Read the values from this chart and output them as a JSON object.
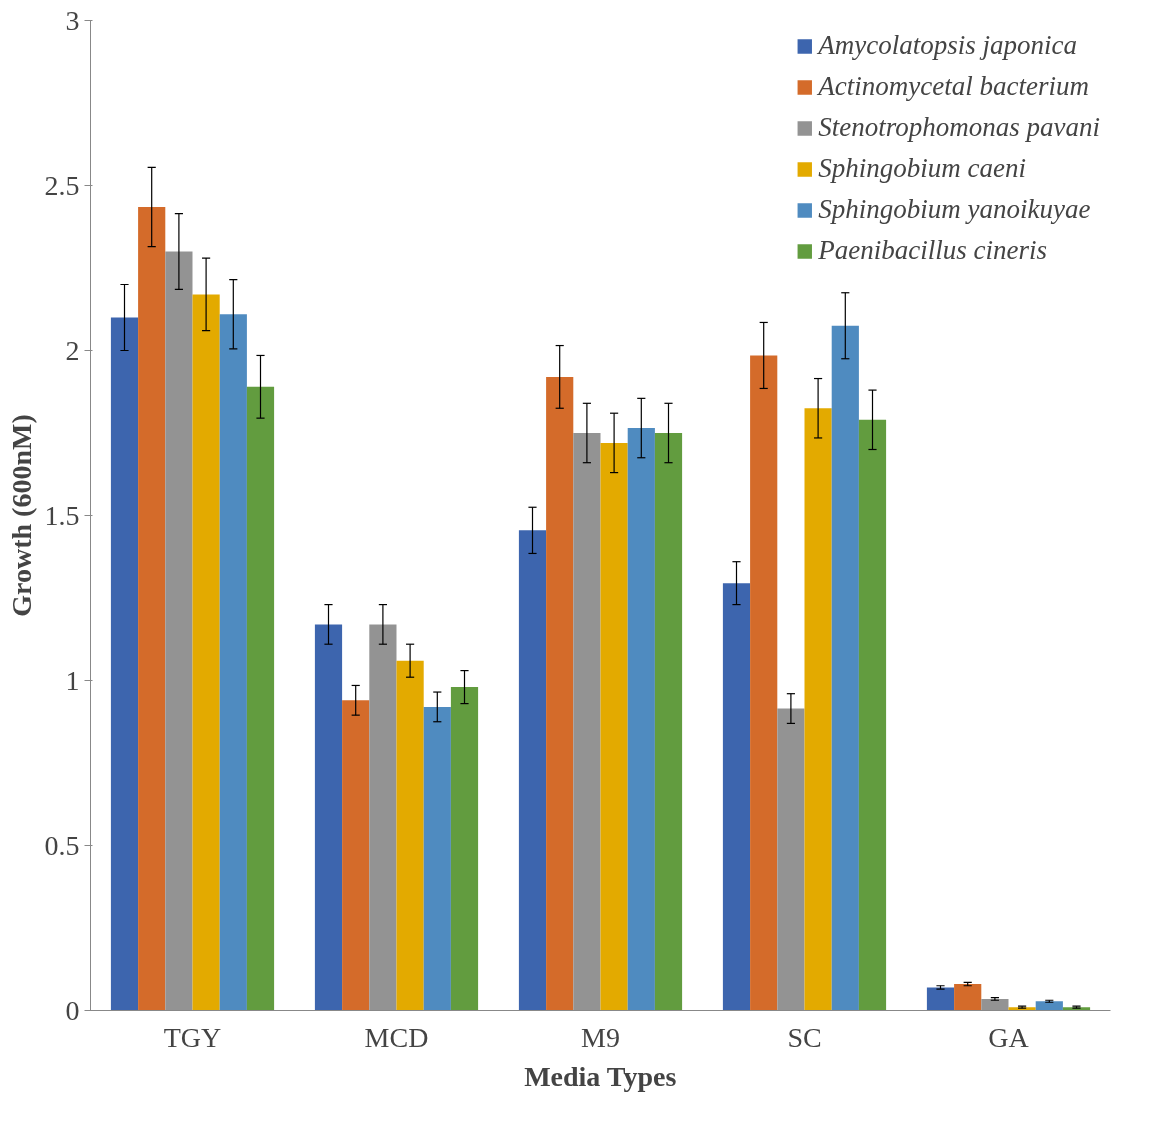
{
  "chart_data": {
    "type": "bar",
    "xlabel": "Media Types",
    "ylabel": "Growth (600nM)",
    "categories": [
      "TGY",
      "MCD",
      "M9",
      "SC",
      "GA"
    ],
    "ylim": [
      0,
      3
    ],
    "yticks": [
      0,
      0.5,
      1,
      1.5,
      2,
      2.5,
      3
    ],
    "grid": false,
    "legend": "top right",
    "series": [
      {
        "name": "Amycolatopsis japonica",
        "color": "#3d65ae",
        "values": [
          2.1,
          1.17,
          1.455,
          1.295,
          0.07
        ],
        "errors": [
          0.1,
          0.06,
          0.07,
          0.065,
          0.005
        ]
      },
      {
        "name": "Actinomycetal bacterium",
        "color": "#d46b2a",
        "values": [
          2.435,
          0.94,
          1.92,
          1.985,
          0.08
        ],
        "errors": [
          0.12,
          0.045,
          0.095,
          0.1,
          0.005
        ]
      },
      {
        "name": "Stenotrophomonas pavani",
        "color": "#939393",
        "values": [
          2.3,
          1.17,
          1.75,
          0.915,
          0.035
        ],
        "errors": [
          0.115,
          0.06,
          0.09,
          0.045,
          0.004
        ]
      },
      {
        "name": "Sphingobium caeni",
        "color": "#e3aa00",
        "values": [
          2.17,
          1.06,
          1.72,
          1.825,
          0.01
        ],
        "errors": [
          0.11,
          0.05,
          0.09,
          0.09,
          0.003
        ]
      },
      {
        "name": "Sphingobium yanoikuyae",
        "color": "#4f8bc0",
        "values": [
          2.11,
          0.92,
          1.765,
          2.075,
          0.028
        ],
        "errors": [
          0.105,
          0.045,
          0.09,
          0.1,
          0.003
        ]
      },
      {
        "name": "Paenibacillus cineris",
        "color": "#629c3f",
        "values": [
          1.89,
          0.98,
          1.75,
          1.79,
          0.01
        ],
        "errors": [
          0.095,
          0.05,
          0.09,
          0.09,
          0.003
        ]
      }
    ]
  }
}
